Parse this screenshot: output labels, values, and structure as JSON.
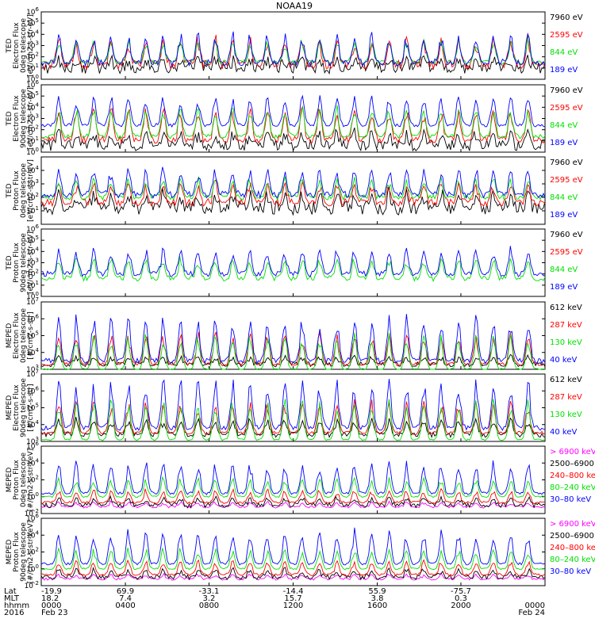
{
  "title": "NOAA19",
  "colors": {
    "black": "#000000",
    "blue": "#0000ff",
    "green": "#00e000",
    "red": "#ff0000",
    "magenta": "#ff00ff"
  },
  "chart_data": [
    {
      "type": "line",
      "ylabel": [
        "TED",
        "Electron Flux",
        "0deg telescope",
        "[eV/cm2-s-str-eV]"
      ],
      "ylim": [
        1,
        1000000
      ],
      "yscale": "log",
      "yticks": [
        {
          "label": "10",
          "sup": "0",
          "exp": 0
        },
        {
          "label": "10",
          "sup": "1",
          "exp": 1
        },
        {
          "label": "10",
          "sup": "2",
          "exp": 2
        },
        {
          "label": "10",
          "sup": "3",
          "exp": 3
        },
        {
          "label": "10",
          "sup": "4",
          "exp": 4
        },
        {
          "label": "10",
          "sup": "5",
          "exp": 5
        },
        {
          "label": "10",
          "sup": "6",
          "exp": 6
        }
      ],
      "series": [
        {
          "name": "7960 eV",
          "color": "#000000",
          "base": 1.0,
          "amp": 0.8,
          "noise": 1.0
        },
        {
          "name": "2595 eV",
          "color": "#ff0000",
          "base": 1.3,
          "amp": 2.5,
          "noise": 0.8
        },
        {
          "name": "844 eV",
          "color": "#00e000",
          "base": 1.5,
          "amp": 2.2,
          "noise": 0.4
        },
        {
          "name": "189 eV",
          "color": "#0000ff",
          "base": 1.5,
          "amp": 2.6,
          "noise": 0.6
        }
      ]
    },
    {
      "type": "line",
      "ylabel": [
        "TED",
        "Electron Flux",
        "90deg telescope",
        "[eV/cm2-s-str-eV]"
      ],
      "ylim": [
        1,
        1000000
      ],
      "yscale": "log",
      "yticks": [
        {
          "label": "10",
          "sup": "0",
          "exp": 0
        },
        {
          "label": "10",
          "sup": "1",
          "exp": 1
        },
        {
          "label": "10",
          "sup": "2",
          "exp": 2
        },
        {
          "label": "10",
          "sup": "3",
          "exp": 3
        },
        {
          "label": "10",
          "sup": "4",
          "exp": 4
        },
        {
          "label": "10",
          "sup": "5",
          "exp": 5
        },
        {
          "label": "10",
          "sup": "6",
          "exp": 6
        }
      ],
      "series": [
        {
          "name": "7960 eV",
          "color": "#000000",
          "base": 0.6,
          "amp": 1.2,
          "noise": 1.0
        },
        {
          "name": "2595 eV",
          "color": "#ff0000",
          "base": 1.1,
          "amp": 3.0,
          "noise": 0.6
        },
        {
          "name": "844 eV",
          "color": "#00e000",
          "base": 1.4,
          "amp": 2.8,
          "noise": 0.4
        },
        {
          "name": "189 eV",
          "color": "#0000ff",
          "base": 2.4,
          "amp": 2.8,
          "noise": 0.3
        }
      ]
    },
    {
      "type": "line",
      "ylabel": [
        "TED",
        "Proton Flux",
        "0deg telescope",
        "[eV/cm2-s-str-eV]"
      ],
      "ylim": [
        1,
        100000
      ],
      "yscale": "log",
      "yticks": [
        {
          "label": "10",
          "sup": "1",
          "exp": 1
        },
        {
          "label": "10",
          "sup": "2",
          "exp": 2
        },
        {
          "label": "10",
          "sup": "3",
          "exp": 3
        },
        {
          "label": "10",
          "sup": "4",
          "exp": 4
        }
      ],
      "series": [
        {
          "name": "7960 eV",
          "color": "#000000",
          "base": 1.2,
          "amp": 1.2,
          "noise": 1.0
        },
        {
          "name": "2595 eV",
          "color": "#ff0000",
          "base": 1.6,
          "amp": 1.6,
          "noise": 0.6
        },
        {
          "name": "844 eV",
          "color": "#00e000",
          "base": 2.0,
          "amp": 1.5,
          "noise": 0.4
        },
        {
          "name": "189 eV",
          "color": "#0000ff",
          "base": 2.2,
          "amp": 2.0,
          "noise": 0.5
        }
      ]
    },
    {
      "type": "line",
      "ylabel": [
        "TED",
        "Proton Flux",
        "90deg telescope",
        "[eV/cm2-s-str-eV]"
      ],
      "ylim": [
        1,
        1000000
      ],
      "yscale": "log",
      "yticks": [
        {
          "label": "10",
          "sup": "0",
          "exp": 0
        },
        {
          "label": "10",
          "sup": "1",
          "exp": 1
        },
        {
          "label": "10",
          "sup": "2",
          "exp": 2
        },
        {
          "label": "10",
          "sup": "3",
          "exp": 3
        },
        {
          "label": "10",
          "sup": "4",
          "exp": 4
        },
        {
          "label": "10",
          "sup": "5",
          "exp": 5
        },
        {
          "label": "10",
          "sup": "6",
          "exp": 6
        }
      ],
      "series": [
        {
          "name": "7960 eV",
          "color": "#000000",
          "base": 0,
          "amp": 0,
          "noise": 0
        },
        {
          "name": "2595 eV",
          "color": "#ff0000",
          "base": 0,
          "amp": 0,
          "noise": 0
        },
        {
          "name": "844 eV",
          "color": "#00e000",
          "base": 1.6,
          "amp": 2.0,
          "noise": 0.5
        },
        {
          "name": "189 eV",
          "color": "#0000ff",
          "base": 2.0,
          "amp": 2.4,
          "noise": 0.5
        }
      ]
    },
    {
      "type": "line",
      "ylabel": [
        "MEPED",
        "Electron Flux",
        "0deg telescope",
        "[#/cm2-s-str]"
      ],
      "ylim": [
        1000,
        10000000
      ],
      "yscale": "log",
      "yticks": [
        {
          "label": "10",
          "sup": "3",
          "exp": 3
        },
        {
          "label": "10",
          "sup": "4",
          "exp": 4
        },
        {
          "label": "10",
          "sup": "5",
          "exp": 5
        },
        {
          "label": "10",
          "sup": "6",
          "exp": 6
        },
        {
          "label": "10",
          "sup": "7",
          "exp": 7
        }
      ],
      "series": [
        {
          "name": "612 keV",
          "color": "#000000",
          "base": 3.3,
          "amp": 0.5,
          "noise": 0.3
        },
        {
          "name": "287 keV",
          "color": "#ff0000",
          "base": 3.3,
          "amp": 2.0,
          "noise": 0.2
        },
        {
          "name": "130 keV",
          "color": "#00e000",
          "base": 3.0,
          "amp": 2.2,
          "noise": 0.1
        },
        {
          "name": "40 keV",
          "color": "#0000ff",
          "base": 3.5,
          "amp": 2.8,
          "noise": 0.3
        }
      ]
    },
    {
      "type": "line",
      "ylabel": [
        "MEPED",
        "Electron Flux",
        "90deg telescope",
        "[#/cm2-s-str]"
      ],
      "ylim": [
        1000,
        10000000
      ],
      "yscale": "log",
      "yticks": [
        {
          "label": "10",
          "sup": "3",
          "exp": 3
        },
        {
          "label": "10",
          "sup": "4",
          "exp": 4
        },
        {
          "label": "10",
          "sup": "5",
          "exp": 5
        },
        {
          "label": "10",
          "sup": "6",
          "exp": 6
        },
        {
          "label": "10",
          "sup": "7",
          "exp": 7
        }
      ],
      "series": [
        {
          "name": "612 keV",
          "color": "#000000",
          "base": 3.4,
          "amp": 1.0,
          "noise": 0.3
        },
        {
          "name": "287 keV",
          "color": "#ff0000",
          "base": 3.5,
          "amp": 2.0,
          "noise": 0.2
        },
        {
          "name": "130 keV",
          "color": "#00e000",
          "base": 3.1,
          "amp": 2.5,
          "noise": 0.1
        },
        {
          "name": "40 keV",
          "color": "#0000ff",
          "base": 3.8,
          "amp": 3.0,
          "noise": 0.3
        }
      ]
    },
    {
      "type": "line",
      "ylabel": [
        "MEPED",
        "Proton Flux",
        "0deg telescope",
        "[#/cm2-s-str-keV]"
      ],
      "ylim": [
        0.01,
        1000000
      ],
      "yscale": "log",
      "yticks": [
        {
          "label": "10",
          "sup": "-2",
          "exp": -2
        },
        {
          "label": "10",
          "sup": "0",
          "exp": 0
        },
        {
          "label": "10",
          "sup": "2",
          "exp": 2
        },
        {
          "label": "10",
          "sup": "4",
          "exp": 4
        },
        {
          "label": "10",
          "sup": "6",
          "exp": 6
        }
      ],
      "series": [
        {
          "name": "> 6900 keV",
          "color": "#ff00ff",
          "base": -1.2,
          "amp": 0.6,
          "noise": 0.3
        },
        {
          "name": "2500–6900",
          "color": "#000000",
          "base": -1.0,
          "amp": 1.0,
          "noise": 0.6
        },
        {
          "name": "240–800 ke",
          "color": "#ff0000",
          "base": -0.7,
          "amp": 1.6,
          "noise": 0.3
        },
        {
          "name": "80–240 keV",
          "color": "#00e000",
          "base": 0.0,
          "amp": 2.4,
          "noise": 0.2
        },
        {
          "name": "30–80 keV",
          "color": "#0000ff",
          "base": 0.4,
          "amp": 4.0,
          "noise": 0.3
        }
      ]
    },
    {
      "type": "line",
      "ylabel": [
        "MEPED",
        "Proton Flux",
        "90deg telescope",
        "[#/cm2-s-str-keV]"
      ],
      "ylim": [
        0.01,
        1000000
      ],
      "yscale": "log",
      "yticks": [
        {
          "label": "10",
          "sup": "-2",
          "exp": -2
        },
        {
          "label": "10",
          "sup": "0",
          "exp": 0
        },
        {
          "label": "10",
          "sup": "2",
          "exp": 2
        },
        {
          "label": "10",
          "sup": "4",
          "exp": 4
        },
        {
          "label": "10",
          "sup": "6",
          "exp": 6
        }
      ],
      "series": [
        {
          "name": "> 6900 keV",
          "color": "#ff00ff",
          "base": -1.2,
          "amp": 0.6,
          "noise": 0.3
        },
        {
          "name": "2500–6900",
          "color": "#000000",
          "base": -1.0,
          "amp": 1.0,
          "noise": 0.6
        },
        {
          "name": "240–800 ke",
          "color": "#ff0000",
          "base": -0.7,
          "amp": 1.8,
          "noise": 0.3
        },
        {
          "name": "80–240 keV",
          "color": "#00e000",
          "base": 0.0,
          "amp": 2.6,
          "noise": 0.2
        },
        {
          "name": "30–80 keV",
          "color": "#0000ff",
          "base": 0.6,
          "amp": 4.2,
          "noise": 0.3
        }
      ]
    }
  ],
  "bottom_axis": {
    "row_labels": [
      "Lat",
      "MLT",
      "hhmm",
      "2016"
    ],
    "columns": [
      {
        "frac": 0.0,
        "lat": "-19.9",
        "mlt": "18.2",
        "hhmm": "0000",
        "date": "Feb 23"
      },
      {
        "frac": 0.167,
        "lat": "69.9",
        "mlt": "7.4",
        "hhmm": "0400",
        "date": ""
      },
      {
        "frac": 0.333,
        "lat": "-33.1",
        "mlt": "3.2",
        "hhmm": "0800",
        "date": ""
      },
      {
        "frac": 0.5,
        "lat": "-14.4",
        "mlt": "15.7",
        "hhmm": "1200",
        "date": ""
      },
      {
        "frac": 0.667,
        "lat": "55.9",
        "mlt": "3.8",
        "hhmm": "1600",
        "date": ""
      },
      {
        "frac": 0.833,
        "lat": "-75.7",
        "mlt": "0.3",
        "hhmm": "2000",
        "date": ""
      },
      {
        "frac": 1.0,
        "lat": "",
        "mlt": "",
        "hhmm": "0000",
        "date": "Feb 24"
      }
    ]
  }
}
